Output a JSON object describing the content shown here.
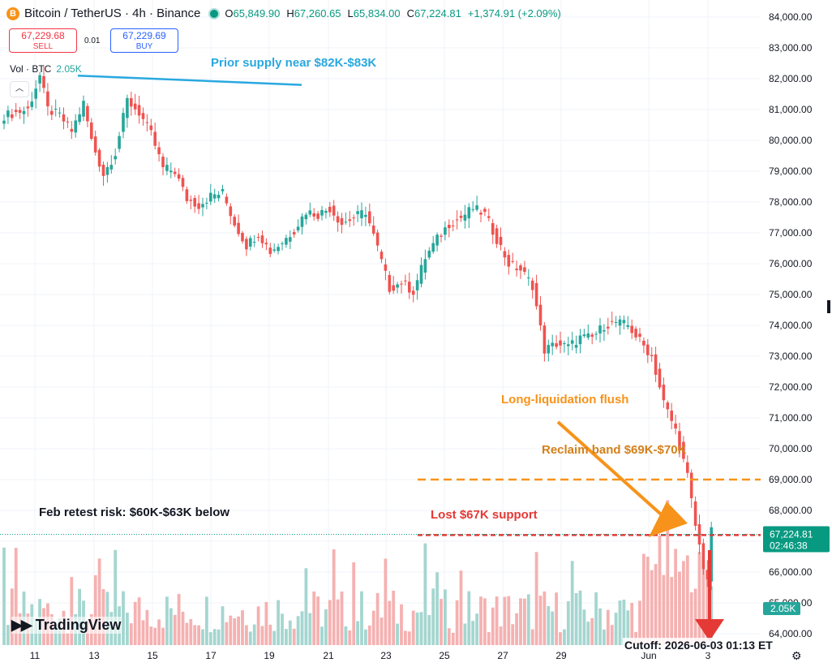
{
  "header": {
    "coin_icon": "B",
    "symbol": "Bitcoin / TetherUS · 4h · Binance",
    "open_label": "O",
    "open": "65,849.90",
    "high_label": "H",
    "high": "67,260.65",
    "low_label": "L",
    "low": "65,834.00",
    "close_label": "C",
    "close": "67,224.81",
    "change": "+1,374.91 (+2.09%)"
  },
  "trade": {
    "sell_price": "67,229.68",
    "sell_label": "SELL",
    "spread": "0.01",
    "buy_price": "67,229.69",
    "buy_label": "BUY"
  },
  "volume": {
    "label": "Vol · BTC",
    "value": "2.05K",
    "collapse_icon": "chevron-up-icon"
  },
  "branding": {
    "name": "TradingView",
    "logo_icon": "tradingview-logo-icon"
  },
  "cutoff": "Cutoff: 2026-06-03 01:13 ET",
  "settings_icon": "gear-icon",
  "colors": {
    "up": "#26a69a",
    "down": "#ef5350",
    "supply_line": "#29a8e0",
    "annotation_orange": "#f7931a",
    "annotation_red": "#e53935",
    "label_dark_orange": "#d4801a",
    "price_tag": "#089981"
  },
  "chart_data": {
    "type": "candlestick",
    "interval": "4h",
    "ylim": [
      63800,
      84400
    ],
    "y_ticks": [
      "84,000.00",
      "83,000.00",
      "82,000.00",
      "81,000.00",
      "80,000.00",
      "79,000.00",
      "78,000.00",
      "77,000.00",
      "76,000.00",
      "75,000.00",
      "74,000.00",
      "73,000.00",
      "72,000.00",
      "71,000.00",
      "70,000.00",
      "69,000.00",
      "68,000.00",
      "67,000.00",
      "66,000.00",
      "65,000.00",
      "64,000.00"
    ],
    "x_ticks": [
      "11",
      "13",
      "15",
      "17",
      "19",
      "21",
      "23",
      "25",
      "27",
      "29",
      "Jun",
      "3"
    ],
    "last_price": "67,224.81",
    "countdown": "02:46:38",
    "volume_badge": "2.05K",
    "anchors": [
      [
        0,
        80800
      ],
      [
        6,
        81000
      ],
      [
        9,
        82100
      ],
      [
        11,
        81000
      ],
      [
        14,
        80800
      ],
      [
        17,
        80300
      ],
      [
        20,
        81200
      ],
      [
        22,
        80000
      ],
      [
        25,
        78900
      ],
      [
        28,
        79600
      ],
      [
        31,
        81300
      ],
      [
        34,
        80900
      ],
      [
        37,
        80200
      ],
      [
        40,
        79100
      ],
      [
        43,
        79000
      ],
      [
        46,
        78100
      ],
      [
        49,
        77900
      ],
      [
        52,
        78200
      ],
      [
        55,
        78300
      ],
      [
        58,
        77300
      ],
      [
        61,
        76600
      ],
      [
        64,
        77000
      ],
      [
        67,
        76400
      ],
      [
        70,
        76700
      ],
      [
        73,
        77100
      ],
      [
        76,
        77700
      ],
      [
        79,
        77600
      ],
      [
        82,
        77800
      ],
      [
        85,
        77300
      ],
      [
        88,
        77500
      ],
      [
        91,
        77700
      ],
      [
        94,
        76500
      ],
      [
        97,
        75200
      ],
      [
        100,
        75400
      ],
      [
        103,
        75100
      ],
      [
        106,
        76200
      ],
      [
        109,
        76800
      ],
      [
        112,
        77300
      ],
      [
        115,
        77500
      ],
      [
        118,
        77800
      ],
      [
        121,
        77600
      ],
      [
        124,
        76800
      ],
      [
        127,
        76000
      ],
      [
        130,
        75800
      ],
      [
        133,
        75300
      ],
      [
        136,
        73200
      ],
      [
        139,
        73400
      ],
      [
        142,
        73300
      ],
      [
        145,
        73600
      ],
      [
        148,
        73600
      ],
      [
        151,
        74000
      ],
      [
        154,
        74100
      ],
      [
        157,
        74000
      ],
      [
        160,
        73500
      ],
      [
        163,
        73000
      ],
      [
        166,
        71500
      ],
      [
        169,
        70600
      ],
      [
        172,
        69100
      ],
      [
        174,
        67500
      ],
      [
        176,
        66200
      ],
      [
        177,
        65800
      ],
      [
        178,
        67300
      ]
    ],
    "annotations": [
      {
        "text": "Prior supply near $82K-$83K",
        "color": "#29a8e0"
      },
      {
        "text": "Long-liquidation flush",
        "color": "#f7931a"
      },
      {
        "text": "Reclaim band $69K-$70K",
        "color": "#d4801a"
      },
      {
        "text": "Lost $67K support",
        "color": "#e53935"
      },
      {
        "text": "Feb retest risk: $60K-$63K below",
        "color": "#131722"
      }
    ],
    "levels": [
      {
        "name": "Reclaim band",
        "value": 69000,
        "color": "#f7931a",
        "style": "dashed"
      },
      {
        "name": "Lost support",
        "value": 67200,
        "color": "#e53935",
        "style": "dashed"
      }
    ],
    "supply_line": [
      [
        82100,
        81800
      ]
    ]
  }
}
